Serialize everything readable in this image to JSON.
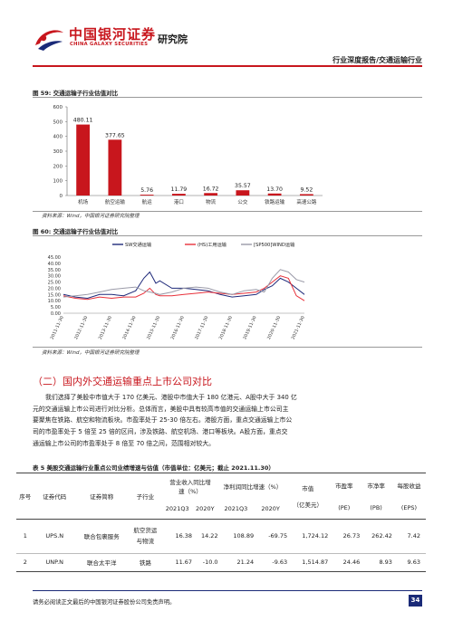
{
  "header": {
    "logo_cn": "中国银河证券",
    "logo_en": "CHINA GALAXY SECURITIES",
    "research": "研究院",
    "report_type": "行业深度报告/交通运输行业"
  },
  "fig59": {
    "title": "图 59: 交通运输子行业估值对比",
    "source": "资料来源：Wind，中国银河证券研究院整理",
    "chart_data": {
      "type": "bar",
      "categories": [
        "机场",
        "航空运输",
        "航运",
        "港口",
        "物流",
        "公交",
        "铁路运输",
        "高速公路"
      ],
      "values": [
        480.11,
        377.65,
        5.76,
        11.79,
        16.72,
        35.57,
        13.7,
        9.52
      ],
      "value_labels": [
        "480.11",
        "377.65",
        "5.76",
        "11.79",
        "16.72",
        "35.57",
        "13.70",
        "9.52"
      ],
      "ylim": [
        0,
        600
      ],
      "yticks": [
        "0",
        "100",
        "200",
        "300",
        "400",
        "500",
        "600"
      ],
      "color": "#c8161d",
      "grid": false
    }
  },
  "fig60": {
    "title": "图 60: 交通运输子行业估值对比",
    "source": "资料来源：Wind，中国银河证券研究院整理",
    "chart_data": {
      "type": "line",
      "legend": [
        "SW交通运输",
        "(HS)工用运输",
        "[SP500]WIND运输"
      ],
      "legend_placement": "top",
      "colors": [
        "#1f2a7a",
        "#e8303a",
        "#9a9aa8"
      ],
      "ylim": [
        0,
        45
      ],
      "yticks": [
        "0.00",
        "5.00",
        "10.00",
        "15.00",
        "20.00",
        "25.00",
        "30.00",
        "35.00",
        "40.00",
        "45.00"
      ],
      "xticks": [
        "2011-11-30",
        "2012-11-30",
        "2013-11-30",
        "2014-11-30",
        "2015-11-30",
        "2016-11-30",
        "2017-11-30",
        "2018-11-30",
        "2019-11-30",
        "2020-11-30",
        "2021-11-30"
      ],
      "x": [
        "2011-11",
        "2012-05",
        "2012-11",
        "2013-05",
        "2013-11",
        "2014-05",
        "2014-11",
        "2015-03",
        "2015-06",
        "2015-09",
        "2015-11",
        "2016-05",
        "2016-11",
        "2017-05",
        "2017-11",
        "2018-05",
        "2018-11",
        "2019-05",
        "2019-11",
        "2020-03",
        "2020-07",
        "2020-11",
        "2021-03",
        "2021-07",
        "2021-11"
      ],
      "series": [
        {
          "name": "SW交通运输",
          "values": [
            15,
            13,
            12,
            15,
            15,
            14,
            18,
            28,
            33,
            24,
            26,
            20,
            20,
            19,
            18,
            15,
            13,
            14,
            15,
            19,
            22,
            28,
            25,
            20,
            15
          ]
        },
        {
          "name": "(HS)工用运输",
          "values": [
            14,
            12,
            11,
            13,
            12,
            13,
            13,
            16,
            20,
            15,
            14,
            14,
            15,
            16,
            17,
            16,
            15,
            16,
            17,
            20,
            25,
            30,
            28,
            14,
            10
          ]
        },
        {
          "name": "[SP500]WIND运输",
          "values": [
            13,
            14,
            15,
            17,
            19,
            20,
            21,
            18,
            17,
            16,
            15,
            17,
            20,
            21,
            20,
            17,
            15,
            18,
            19,
            17,
            28,
            35,
            33,
            27,
            25
          ]
        }
      ]
    }
  },
  "section": {
    "title": "（二）国内外交通运输重点上市公司对比",
    "para": [
      "我们选择了美股中市值大于 170 亿美元、港股中市值大于 180 亿港元、A股中大于 340 亿",
      "元的交通运输上市公司进行对比分析。总体而言，美股中具有较高市值的交通运输上市公司主",
      "要聚焦在铁路、航空和物流板块。市盈率处于 25-30 倍左右。港股方面，重点交通运输上市公",
      "司的市盈率处于 5 倍至 25 倍的区间，涉及铁路、航空机场、港口等板块。A股方面，重点交",
      "通运输上市公司的市盈率处于 8 倍至 70 倍之间，范围相对较大。"
    ]
  },
  "table5": {
    "title": "表 5 美股交通运输行业重点公司业绩增速与估值（市值单位：亿美元；截止 2021.11.30）",
    "headers": {
      "no": "序号",
      "code": "证券代码",
      "name": "证券简称",
      "sub": "子行业",
      "rev": "营业收入同比增速（%）",
      "profit": "净利润同比增速（%）",
      "mcap": "市值",
      "mcap_unit": "（亿美元）",
      "pe": "市盈率",
      "pe_sub": "(PE)",
      "pb": "市净率",
      "pb_sub": "(PB)",
      "eps": "每股收益",
      "eps_sub": "(EPS)",
      "q3": "2021Q3",
      "y2020": "2020Y",
      "pq3": "2021Q3",
      "py2020": "2020Y"
    },
    "rows": [
      {
        "no": "1",
        "code": "UPS.N",
        "name": "联合包裹服务",
        "sub": "航空货运与物流",
        "rev_q3": "16.38",
        "rev_y": "14.22",
        "pro_q3": "108.89",
        "pro_y": "-69.75",
        "mcap": "1,724.12",
        "pe": "26.73",
        "pb": "262.42",
        "eps": "7.42"
      },
      {
        "no": "2",
        "code": "UNP.N",
        "name": "联合太平洋",
        "sub": "铁路",
        "rev_q3": "11.67",
        "rev_y": "-10.0",
        "pro_q3": "21.24",
        "pro_y": "-9.63",
        "mcap": "1,514.87",
        "pe": "24.46",
        "pb": "8.93",
        "eps": "9.63"
      }
    ]
  },
  "footer": {
    "disclaimer": "请务必阅读正文最后的中国银河证券股份公司免责声明。",
    "page": "34"
  }
}
